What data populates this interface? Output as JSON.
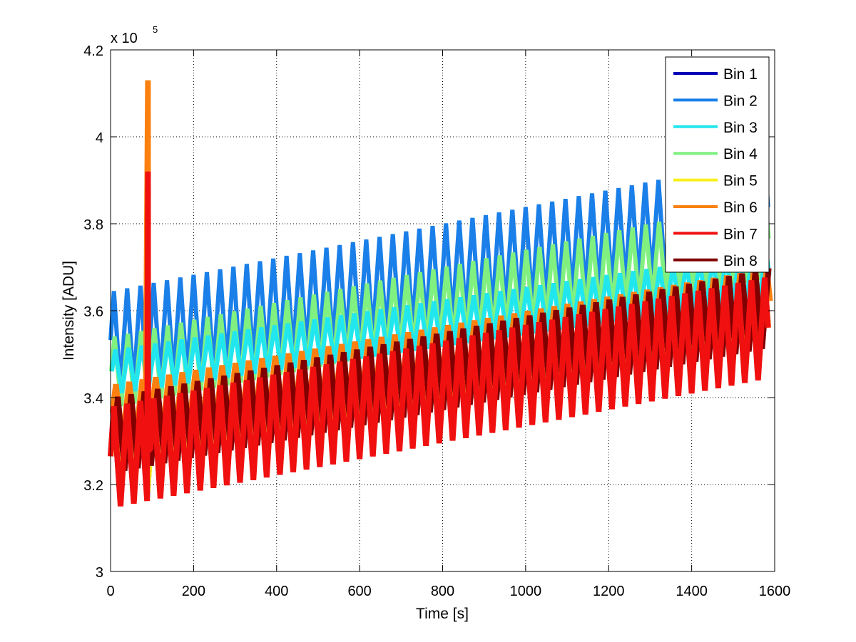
{
  "chart_data": {
    "type": "line",
    "title": "",
    "xlabel": "Time [s]",
    "ylabel": "Intensity [ADU]",
    "y_multiplier_label": "x 10",
    "y_multiplier_exponent": "5",
    "xlim": [
      0,
      1600
    ],
    "ylim": [
      3.0,
      4.2
    ],
    "x_ticks": [
      0,
      200,
      400,
      600,
      800,
      1000,
      1200,
      1400,
      1600
    ],
    "x_tick_labels": [
      "0",
      "200",
      "400",
      "600",
      "800",
      "1000",
      "1200",
      "1400",
      "1600"
    ],
    "y_ticks": [
      3.0,
      3.2,
      3.4,
      3.6,
      3.8,
      4.0,
      4.2
    ],
    "y_tick_labels": [
      "3",
      "3.2",
      "3.4",
      "3.6",
      "3.8",
      "4",
      "4.2"
    ],
    "grid": true,
    "legend_position": "top-right",
    "x_end": 1590,
    "period_s": 32,
    "series": [
      {
        "name": "Bin 1",
        "color": "#0000b4",
        "peak_start": 3.37,
        "peak_end": 3.67,
        "trough_start": 3.16,
        "trough_end": 3.47,
        "phase": 0.0,
        "spike": null
      },
      {
        "name": "Bin 2",
        "color": "#1a7fe8",
        "peak_start": 3.645,
        "peak_end": 3.955,
        "trough_start": 3.42,
        "trough_end": 3.73,
        "phase": 0.0,
        "spike": null
      },
      {
        "name": "Bin 3",
        "color": "#22e6ee",
        "peak_start": 3.51,
        "peak_end": 3.74,
        "trough_start": 3.41,
        "trough_end": 3.63,
        "phase": 0.1,
        "spike": null
      },
      {
        "name": "Bin 4",
        "color": "#80f080",
        "peak_start": 3.54,
        "peak_end": 3.86,
        "trough_start": 3.38,
        "trough_end": 3.68,
        "phase": 0.05,
        "spike": null
      },
      {
        "name": "Bin 5",
        "color": "#f8f020",
        "peak_start": 3.36,
        "peak_end": 3.66,
        "trough_start": 3.17,
        "trough_end": 3.47,
        "phase": 0.02,
        "spike": null
      },
      {
        "name": "Bin 6",
        "color": "#fb8010",
        "peak_start": 3.43,
        "peak_end": 3.7,
        "trough_start": 3.3,
        "trough_end": 3.55,
        "phase": 0.15,
        "spike": {
          "x": 90,
          "y": 4.13
        }
      },
      {
        "name": "Bin 7",
        "color": "#f01010",
        "peak_start": 3.38,
        "peak_end": 3.68,
        "trough_start": 3.15,
        "trough_end": 3.45,
        "phase": 0.0,
        "spike": {
          "x": 90,
          "y": 3.92
        }
      },
      {
        "name": "Bin 8",
        "color": "#800000",
        "peak_start": 3.4,
        "peak_end": 3.7,
        "trough_start": 3.23,
        "trough_end": 3.52,
        "phase": 0.3,
        "spike": {
          "x": 90,
          "y": 3.7
        }
      }
    ]
  }
}
